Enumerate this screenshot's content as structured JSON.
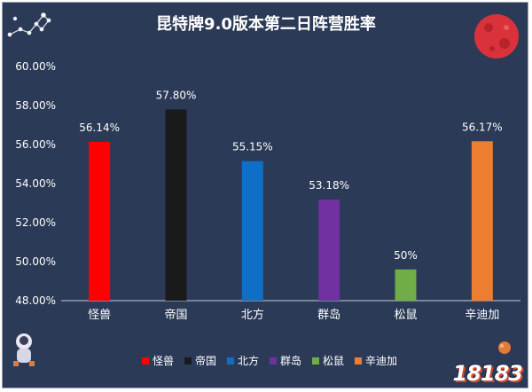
{
  "chart_data": {
    "type": "bar",
    "title": "昆特牌9.0版本第二日阵营胜率",
    "categories": [
      "怪兽",
      "帝国",
      "北方",
      "群岛",
      "松鼠",
      "辛迪加"
    ],
    "values": [
      56.14,
      57.8,
      55.15,
      53.18,
      49.6,
      56.17
    ],
    "value_labels": [
      "56.14%",
      "57.80%",
      "55.15%",
      "53.18%",
      "50%",
      "56.17%"
    ],
    "colors": [
      "#ff0000",
      "#1a1a1a",
      "#0f6fc6",
      "#7030a0",
      "#70ad47",
      "#ed7d31"
    ],
    "ylim": [
      48,
      60
    ],
    "yticks": [
      48,
      50,
      52,
      54,
      56,
      58,
      60
    ],
    "ytick_labels": [
      "48.00%",
      "50.00%",
      "52.00%",
      "54.00%",
      "56.00%",
      "58.00%",
      "60.00%"
    ],
    "legend": [
      "怪兽",
      "帝国",
      "北方",
      "群岛",
      "松鼠",
      "辛迪加"
    ],
    "legend_position": "bottom",
    "grid": false
  },
  "brand": {
    "logo_text": "18183"
  }
}
